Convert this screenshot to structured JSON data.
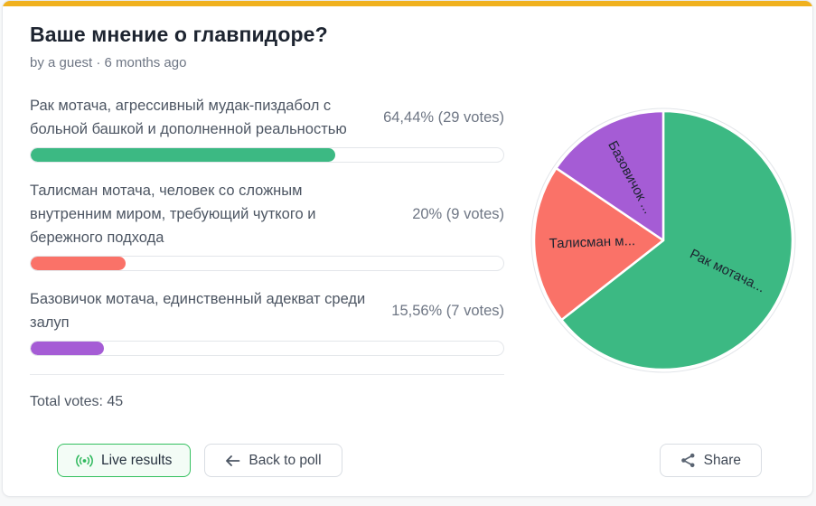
{
  "poll": {
    "title": "Ваше мнение о главпидоре?",
    "byline": "by a guest · 6 months ago",
    "total_votes_label": "Total votes: 45",
    "total_votes": 45
  },
  "options": [
    {
      "label": "Рак мотача, агрессивный мудак-пиздабол с больной башкой и дополненной реальностью",
      "result": "64,44% (29 votes)",
      "percent": 64.44,
      "votes": 29,
      "color": "#3cb983"
    },
    {
      "label": "Талисман мотача, человек со сложным внутренним миром, требующий чуткого и бережного подхода",
      "result": "20% (9 votes)",
      "percent": 20,
      "votes": 9,
      "color": "#fa7268"
    },
    {
      "label": "Базовичок мотача, единственный адекват среди залуп",
      "result": "15,56% (7 votes)",
      "percent": 15.56,
      "votes": 7,
      "color": "#a55cd5"
    }
  ],
  "buttons": {
    "live_results": "Live results",
    "back_to_poll": "Back to poll",
    "share": "Share"
  },
  "chart_data": {
    "type": "pie",
    "title": "",
    "labels": [
      "Рак мотача...",
      "Талисман м...",
      "Базовичок ..."
    ],
    "values": [
      64.44,
      20,
      15.56
    ],
    "votes": [
      29,
      9,
      7
    ],
    "colors": [
      "#3cb983",
      "#fa7268",
      "#a55cd5"
    ],
    "start_angle_deg_from_top": 0,
    "direction": "clockwise",
    "label_position": "inside-radial",
    "legend": "none"
  },
  "theme": {
    "accent_bar": "#f0b11e",
    "green": "#3cb983",
    "red": "#fa7268",
    "purple": "#a55cd5",
    "live_border": "#34c05f",
    "live_icon": "#2eb85c"
  }
}
